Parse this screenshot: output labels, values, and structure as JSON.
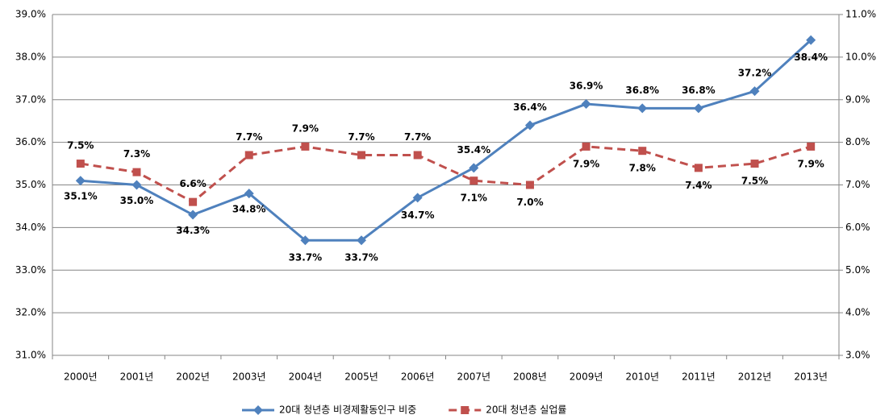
{
  "chart_data": {
    "type": "line",
    "categories": [
      "2000년",
      "2001년",
      "2002년",
      "2003년",
      "2004년",
      "2005년",
      "2006년",
      "2007년",
      "2008년",
      "2009년",
      "2010년",
      "2011년",
      "2012년",
      "2013년"
    ],
    "series": [
      {
        "name": "20대 청년층 비경제활동인구 비중",
        "color": "#4f81bd",
        "dash": false,
        "marker": "diamond",
        "axis": "y",
        "values": [
          35.1,
          35.0,
          34.3,
          34.8,
          33.7,
          33.7,
          34.7,
          35.4,
          36.4,
          36.9,
          36.8,
          36.8,
          37.2,
          38.4
        ],
        "value_labels": [
          "35.1%",
          "35.0%",
          "34.3%",
          "34.8%",
          "33.7%",
          "33.7%",
          "34.7%",
          "35.4%",
          "36.4%",
          "36.9%",
          "36.8%",
          "36.8%",
          "37.2%",
          "38.4%"
        ]
      },
      {
        "name": "20대 청년층 실업률",
        "color": "#c0504d",
        "dash": true,
        "marker": "square",
        "axis": "y2",
        "values": [
          7.5,
          7.3,
          6.6,
          7.7,
          7.9,
          7.7,
          7.7,
          7.1,
          7.0,
          7.9,
          7.8,
          7.4,
          7.5,
          7.9
        ],
        "value_labels": [
          "7.5%",
          "7.3%",
          "6.6%",
          "7.7%",
          "7.9%",
          "7.7%",
          "7.7%",
          "7.1%",
          "7.0%",
          "7.9%",
          "7.8%",
          "7.4%",
          "7.5%",
          "7.9%"
        ]
      }
    ],
    "ylim": [
      31,
      39
    ],
    "yticks": [
      {
        "value": 31,
        "label": "31.0%"
      },
      {
        "value": 32,
        "label": "32.0%"
      },
      {
        "value": 33,
        "label": "33.0%"
      },
      {
        "value": 34,
        "label": "34.0%"
      },
      {
        "value": 35,
        "label": "35.0%"
      },
      {
        "value": 36,
        "label": "36.0%"
      },
      {
        "value": 37,
        "label": "37.0%"
      },
      {
        "value": 38,
        "label": "38.0%"
      },
      {
        "value": 39,
        "label": "39.0%"
      }
    ],
    "y2lim": [
      3,
      11
    ],
    "y2ticks": [
      {
        "value": 3,
        "label": "3.0%"
      },
      {
        "value": 4,
        "label": "4.0%"
      },
      {
        "value": 5,
        "label": "5.0%"
      },
      {
        "value": 6,
        "label": "6.0%"
      },
      {
        "value": 7,
        "label": "7.0%"
      },
      {
        "value": 8,
        "label": "8.0%"
      },
      {
        "value": 9,
        "label": "9.0%"
      },
      {
        "value": 10,
        "label": "10.0%"
      },
      {
        "value": 11,
        "label": "11.0%"
      }
    ],
    "grid": true,
    "legend": "bottom"
  }
}
